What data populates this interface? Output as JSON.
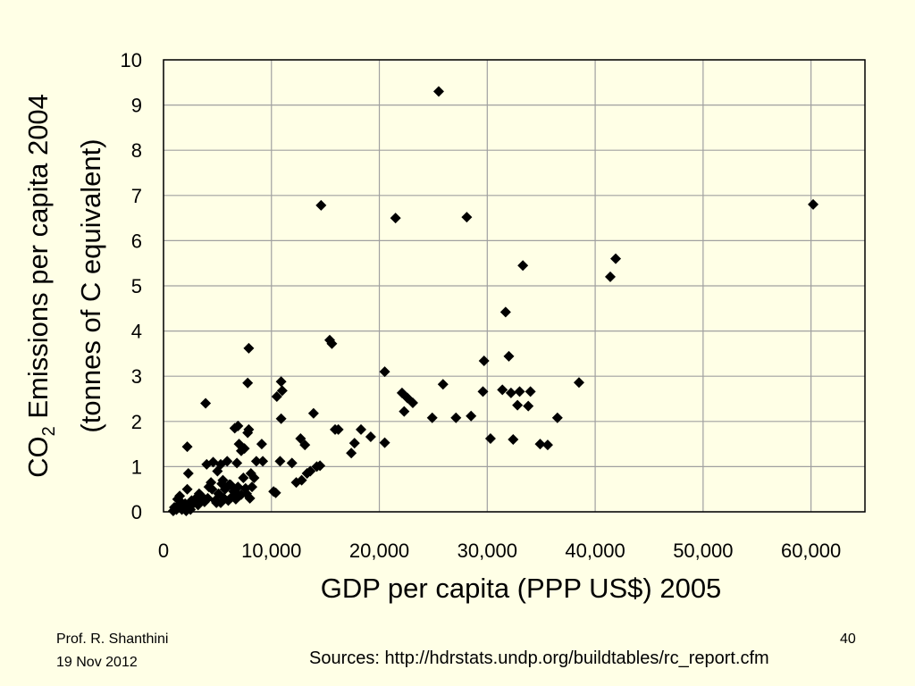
{
  "slide": {
    "author": "Prof. R. Shanthini",
    "date": "19 Nov 2012",
    "page_number": "40",
    "sources": "Sources: http://hdrstats.undp.org/buildtables/rc_report.cfm",
    "background": "#FFFFE6"
  },
  "chart_data": {
    "type": "scatter",
    "title": "",
    "xlabel": "GDP per capita (PPP US$) 2005",
    "ylabel_line1_pre": "CO",
    "ylabel_line1_sub": "2",
    "ylabel_line1_post": " Emissions per capita 2004",
    "ylabel_line2": "(tonnes of C equivalent)",
    "xlim": [
      0,
      65000
    ],
    "ylim": [
      0,
      10
    ],
    "xticks": [
      0,
      10000,
      20000,
      30000,
      40000,
      50000,
      60000
    ],
    "xtick_labels": [
      "0",
      "10,000",
      "20,000",
      "30,000",
      "40,000",
      "50,000",
      "60,000"
    ],
    "yticks": [
      0,
      1,
      2,
      3,
      4,
      5,
      6,
      7,
      8,
      9,
      10
    ],
    "ytick_labels": [
      "0",
      "1",
      "2",
      "3",
      "4",
      "5",
      "6",
      "7",
      "8",
      "9",
      "10"
    ],
    "grid": "vertical and horizontal",
    "marker": "diamond",
    "marker_color": "#000000",
    "grid_color": "#A0A0A0",
    "points": [
      [
        25500,
        9.3
      ],
      [
        60200,
        6.8
      ],
      [
        14600,
        6.78
      ],
      [
        21500,
        6.5
      ],
      [
        28100,
        6.52
      ],
      [
        41900,
        5.6
      ],
      [
        41400,
        5.2
      ],
      [
        33300,
        5.45
      ],
      [
        31700,
        4.42
      ],
      [
        7900,
        3.62
      ],
      [
        15400,
        3.8
      ],
      [
        15600,
        3.72
      ],
      [
        32000,
        3.44
      ],
      [
        29700,
        3.34
      ],
      [
        20500,
        3.1
      ],
      [
        38500,
        2.86
      ],
      [
        25900,
        2.82
      ],
      [
        7800,
        2.85
      ],
      [
        10900,
        2.88
      ],
      [
        11000,
        2.68
      ],
      [
        10500,
        2.55
      ],
      [
        3900,
        2.4
      ],
      [
        22100,
        2.63
      ],
      [
        22600,
        2.52
      ],
      [
        23100,
        2.41
      ],
      [
        22300,
        2.22
      ],
      [
        31400,
        2.7
      ],
      [
        32200,
        2.63
      ],
      [
        33000,
        2.66
      ],
      [
        34000,
        2.66
      ],
      [
        29600,
        2.66
      ],
      [
        32800,
        2.36
      ],
      [
        33800,
        2.34
      ],
      [
        13900,
        2.18
      ],
      [
        10900,
        2.06
      ],
      [
        24900,
        2.08
      ],
      [
        27100,
        2.08
      ],
      [
        28500,
        2.12
      ],
      [
        36500,
        2.08
      ],
      [
        6600,
        1.85
      ],
      [
        6900,
        1.9
      ],
      [
        7900,
        1.82
      ],
      [
        7800,
        1.75
      ],
      [
        15900,
        1.82
      ],
      [
        16200,
        1.82
      ],
      [
        18300,
        1.82
      ],
      [
        19200,
        1.66
      ],
      [
        12700,
        1.62
      ],
      [
        2200,
        1.44
      ],
      [
        7000,
        1.5
      ],
      [
        7500,
        1.4
      ],
      [
        7200,
        1.35
      ],
      [
        9100,
        1.5
      ],
      [
        13100,
        1.48
      ],
      [
        17700,
        1.52
      ],
      [
        17400,
        1.3
      ],
      [
        20500,
        1.53
      ],
      [
        30300,
        1.62
      ],
      [
        32400,
        1.6
      ],
      [
        34900,
        1.5
      ],
      [
        35600,
        1.48
      ],
      [
        8600,
        1.12
      ],
      [
        9200,
        1.12
      ],
      [
        10800,
        1.12
      ],
      [
        11900,
        1.08
      ],
      [
        14200,
        1.0
      ],
      [
        14500,
        1.02
      ],
      [
        13300,
        0.85
      ],
      [
        12800,
        0.7
      ],
      [
        13600,
        0.9
      ],
      [
        12300,
        0.65
      ],
      [
        4000,
        1.05
      ],
      [
        4600,
        1.1
      ],
      [
        5300,
        1.05
      ],
      [
        5900,
        1.12
      ],
      [
        6800,
        1.08
      ],
      [
        2300,
        0.85
      ],
      [
        5000,
        0.9
      ],
      [
        5500,
        0.7
      ],
      [
        6200,
        0.6
      ],
      [
        7400,
        0.75
      ],
      [
        8100,
        0.85
      ],
      [
        8400,
        0.75
      ],
      [
        10200,
        0.45
      ],
      [
        10400,
        0.42
      ],
      [
        2200,
        0.5
      ],
      [
        3000,
        0.3
      ],
      [
        3500,
        0.35
      ],
      [
        4200,
        0.55
      ],
      [
        4500,
        0.5
      ],
      [
        5100,
        0.4
      ],
      [
        5700,
        0.5
      ],
      [
        6500,
        0.45
      ],
      [
        7000,
        0.35
      ],
      [
        7700,
        0.4
      ],
      [
        8000,
        0.3
      ],
      [
        1000,
        0.1
      ],
      [
        1200,
        0.05
      ],
      [
        1400,
        0.15
      ],
      [
        1600,
        0.22
      ],
      [
        1800,
        0.08
      ],
      [
        2000,
        0.18
      ],
      [
        2400,
        0.1
      ],
      [
        2600,
        0.25
      ],
      [
        2800,
        0.2
      ],
      [
        3200,
        0.15
      ],
      [
        3600,
        0.28
      ],
      [
        3800,
        0.22
      ],
      [
        4100,
        0.3
      ],
      [
        4800,
        0.25
      ],
      [
        5300,
        0.2
      ],
      [
        5600,
        0.3
      ],
      [
        6000,
        0.25
      ],
      [
        6300,
        0.32
      ],
      [
        6700,
        0.28
      ],
      [
        7200,
        0.38
      ],
      [
        1300,
        0.28
      ],
      [
        1500,
        0.35
      ],
      [
        900,
        0.02
      ],
      [
        1700,
        0.05
      ],
      [
        2100,
        0.02
      ],
      [
        2500,
        0.05
      ],
      [
        3300,
        0.4
      ],
      [
        4400,
        0.65
      ],
      [
        5400,
        0.62
      ],
      [
        6100,
        0.6
      ],
      [
        6900,
        0.55
      ],
      [
        7600,
        0.52
      ],
      [
        8200,
        0.55
      ],
      [
        4900,
        0.2
      ]
    ]
  }
}
